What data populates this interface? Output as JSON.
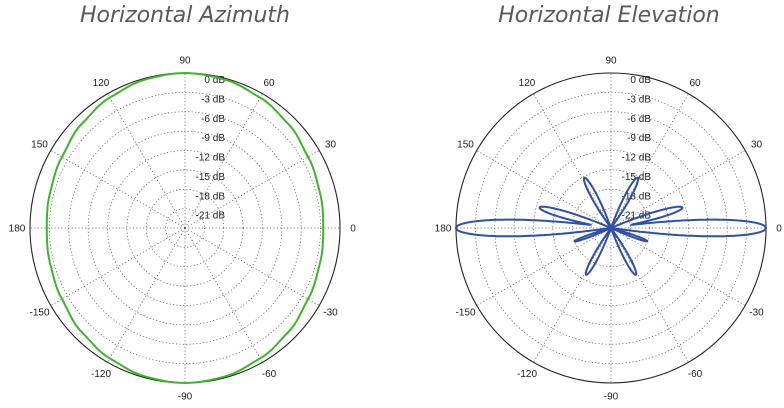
{
  "chart_data": [
    {
      "type": "polar",
      "title": "Horizontal Azimuth",
      "angle_unit": "degrees",
      "angle_tick_labels": [
        "0",
        "30",
        "60",
        "90",
        "120",
        "150",
        "180",
        "-150",
        "-120",
        "-90",
        "-60",
        "-30"
      ],
      "radial_unit": "dB",
      "radial_range": [
        -24,
        0
      ],
      "radial_tick_labels": [
        "0 dB",
        "-3 dB",
        "-6 dB",
        "-9 dB",
        "-12 dB",
        "-15 dB",
        "-18 dB",
        "-21 dB"
      ],
      "grid": true,
      "series": [
        {
          "color": "#3db52a",
          "angles": [
            0,
            15,
            30,
            45,
            60,
            75,
            90,
            105,
            120,
            135,
            150,
            165,
            180,
            195,
            210,
            225,
            240,
            255,
            270,
            285,
            300,
            315,
            330,
            345
          ],
          "gain_db": [
            -2.6,
            -2.4,
            -2.0,
            -1.3,
            -0.7,
            -0.2,
            0,
            -0.2,
            -0.7,
            -1.3,
            -2.0,
            -2.4,
            -2.6,
            -2.4,
            -2.0,
            -1.3,
            -0.7,
            -0.2,
            0,
            -0.2,
            -0.7,
            -1.3,
            -2.0,
            -2.4
          ]
        }
      ]
    },
    {
      "type": "polar",
      "title": "Horizontal Elevation",
      "angle_unit": "degrees",
      "angle_tick_labels": [
        "0",
        "30",
        "60",
        "90",
        "120",
        "150",
        "180",
        "-150",
        "-120",
        "-90",
        "-60",
        "-30"
      ],
      "radial_unit": "dB",
      "radial_range": [
        -24,
        0
      ],
      "radial_tick_labels": [
        "0 dB",
        "-3 dB",
        "-6 dB",
        "-9 dB",
        "-12 dB",
        "-15 dB",
        "-18 dB",
        "-21 dB"
      ],
      "grid": true,
      "series": [
        {
          "color": "#2f4fa8",
          "lobes": [
            {
              "direction": 0,
              "peak_db": 0,
              "beamwidth": 8
            },
            {
              "direction": 180,
              "peak_db": 0,
              "beamwidth": 8
            },
            {
              "direction": 16,
              "peak_db": -12.5,
              "beamwidth": 10
            },
            {
              "direction": 164,
              "peak_db": -12.5,
              "beamwidth": 10
            },
            {
              "direction": 62,
              "peak_db": -15.2,
              "beamwidth": 13
            },
            {
              "direction": 118,
              "peak_db": -15.2,
              "beamwidth": 13
            },
            {
              "direction": -62,
              "peak_db": -15.8,
              "beamwidth": 13
            },
            {
              "direction": -118,
              "peak_db": -15.8,
              "beamwidth": 13
            },
            {
              "direction": -20,
              "peak_db": -18,
              "beamwidth": 9
            },
            {
              "direction": -160,
              "peak_db": -18,
              "beamwidth": 9
            }
          ]
        }
      ]
    }
  ]
}
